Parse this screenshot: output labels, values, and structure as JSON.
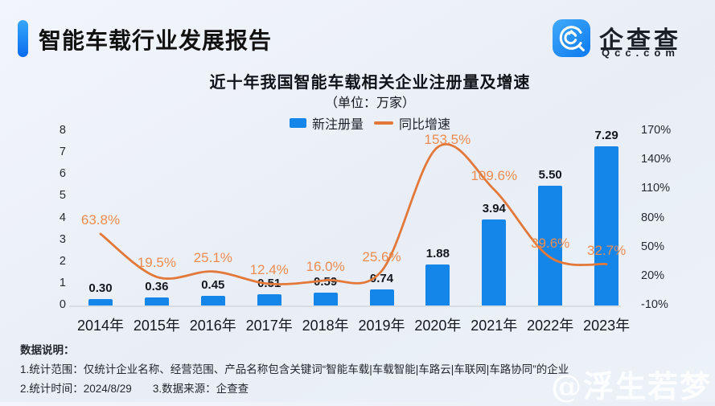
{
  "header": {
    "title": "智能车载行业发展报告",
    "logo": {
      "name": "企查查",
      "domain": "Qcc.com"
    }
  },
  "chart": {
    "title": "近十年我国智能车载相关企业注册量及增速",
    "subtitle": "（单位：万家）",
    "legend": {
      "bar": "新注册量",
      "line": "同比增速"
    }
  },
  "chart_data": {
    "type": "combo-bar-line",
    "title": "近十年我国智能车载相关企业注册量及增速",
    "unit": "万家",
    "categories": [
      "2014年",
      "2015年",
      "2016年",
      "2017年",
      "2018年",
      "2019年",
      "2020年",
      "2021年",
      "2022年",
      "2023年"
    ],
    "series": [
      {
        "name": "新注册量",
        "type": "bar",
        "axis": "left",
        "color": "#1486e9",
        "values": [
          0.3,
          0.36,
          0.45,
          0.51,
          0.59,
          0.74,
          1.88,
          3.94,
          5.5,
          7.29
        ],
        "labels": [
          "0.30",
          "0.36",
          "0.45",
          "0.51",
          "0.59",
          "0.74",
          "1.88",
          "3.94",
          "5.50",
          "7.29"
        ]
      },
      {
        "name": "同比增速",
        "type": "line",
        "axis": "right",
        "color": "#e2793a",
        "label_color": "#ec8c52",
        "values": [
          63.8,
          19.5,
          25.1,
          12.4,
          16.0,
          25.6,
          153.5,
          109.6,
          39.6,
          32.7
        ],
        "labels": [
          "63.8%",
          "19.5%",
          "25.1%",
          "12.4%",
          "16.0%",
          "25.6%",
          "153.5%",
          "109.6%",
          "39.6%",
          "32.7%"
        ]
      }
    ],
    "left_axis": {
      "min": 0,
      "max": 8,
      "ticks": [
        0,
        1,
        2,
        3,
        4,
        5,
        6,
        7,
        8
      ]
    },
    "right_axis": {
      "min": -10,
      "max": 170,
      "tick_values": [
        -10,
        20,
        50,
        80,
        110,
        140,
        170
      ],
      "ticks": [
        "-10%",
        "20%",
        "50%",
        "80%",
        "110%",
        "140%",
        "170%"
      ]
    },
    "grid": false,
    "legend_position": "top"
  },
  "footer": {
    "heading": "数据说明：",
    "note_scope": "1.统计范围：仅统计企业名称、经营范围、产品名称包含关键词“智能车载|车载智能|车路云|车联网|车路协同”的企业",
    "note_time": "2.统计时间：2024/8/29",
    "note_source": "3.数据来源：企查查"
  },
  "watermark": "@浮生若梦",
  "colors": {
    "accent": "#0d7bf0",
    "bar": "#1486e9",
    "line": "#e2793a"
  }
}
